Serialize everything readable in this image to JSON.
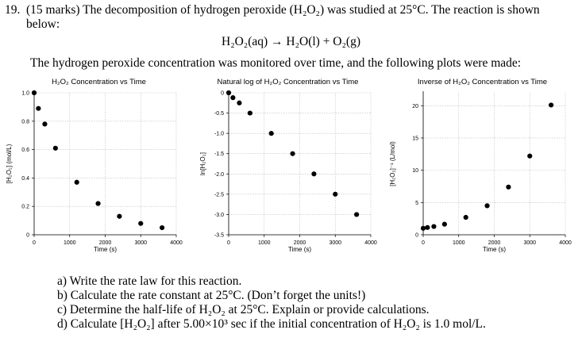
{
  "question": {
    "number": "19.",
    "line1": "(15 marks) The decomposition of hydrogen peroxide (H₂O₂) was studied at 25°C. The reaction is shown",
    "line2": "below:",
    "equation": "H₂O₂(aq) → H₂O(l) + O₂(g)",
    "intro": "The hydrogen peroxide concentration was monitored over time, and the following plots were made:"
  },
  "parts": [
    "a) Write the rate law for this reaction.",
    "b) Calculate the rate constant at 25°C. (Don’t forget the units!)",
    "c) Determine the half-life of H₂O₂ at 25°C. Explain or provide calculations.",
    "d) Calculate [H₂O₂] after 5.00×10³ sec if the initial concentration of H₂O₂ is 1.0 mol/L."
  ],
  "chart_data": [
    {
      "type": "scatter",
      "title": "H₂O₂ Concentration vs Time",
      "xlabel": "Time (s)",
      "ylabel": "[H₂O₂] (mol/L)",
      "xlim": [
        0,
        4000
      ],
      "ylim": [
        0,
        1.0
      ],
      "xticks": [
        0,
        1000,
        2000,
        3000,
        4000
      ],
      "yticks": [
        0,
        0.2,
        0.4,
        0.6,
        0.8,
        1.0
      ],
      "ytick_labels": [
        "0",
        "0.2",
        "0.4",
        "0.6",
        "0.8",
        "1.0"
      ],
      "grid": true,
      "x": [
        0,
        120,
        300,
        600,
        1200,
        1800,
        2400,
        3000,
        3600
      ],
      "y": [
        1.0,
        0.89,
        0.78,
        0.61,
        0.37,
        0.22,
        0.13,
        0.08,
        0.05
      ]
    },
    {
      "type": "scatter",
      "title": "Natural log of H₂O₂ Concentration vs Time",
      "xlabel": "Time (s)",
      "ylabel": "ln[H₂O₂]",
      "xlim": [
        0,
        4000
      ],
      "ylim": [
        -3.5,
        0
      ],
      "xticks": [
        0,
        1000,
        2000,
        3000,
        4000
      ],
      "yticks": [
        -3.5,
        -3.0,
        -2.5,
        -2.0,
        -1.5,
        -1.0,
        -0.5,
        0
      ],
      "ytick_labels": [
        "-3.5",
        "-3.0",
        "-2.5",
        "-2.0",
        "-1.5",
        "-1.0",
        "-0.5",
        "0"
      ],
      "grid": true,
      "x": [
        0,
        120,
        300,
        600,
        1200,
        1800,
        2400,
        3000,
        3600
      ],
      "y": [
        0,
        -0.12,
        -0.25,
        -0.5,
        -1.0,
        -1.5,
        -2.0,
        -2.5,
        -3.0
      ]
    },
    {
      "type": "scatter",
      "title": "Inverse of H₂O₂ Concentration vs Time",
      "xlabel": "Time (s)",
      "ylabel": "[H₂O₂]⁻¹ (L/mol)",
      "xlim": [
        0,
        4000
      ],
      "ylim": [
        0,
        22
      ],
      "xticks": [
        0,
        1000,
        2000,
        3000,
        4000
      ],
      "yticks": [
        0,
        5,
        10,
        15,
        20
      ],
      "ytick_labels": [
        "0",
        "5",
        "10",
        "15",
        "20"
      ],
      "grid": true,
      "x": [
        0,
        120,
        300,
        600,
        1200,
        1800,
        2400,
        3000,
        3600
      ],
      "y": [
        1.0,
        1.13,
        1.28,
        1.64,
        2.7,
        4.5,
        7.4,
        12.2,
        20.1
      ]
    }
  ]
}
